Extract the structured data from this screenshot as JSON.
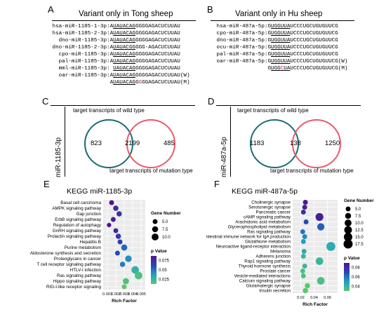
{
  "panels": {
    "A": {
      "letter": "A",
      "title": "Variant only in Tong sheep",
      "rows": [
        {
          "name": "hsa-miR-1185-1-3p:",
          "pre": "AUAUACAGG",
          "post": "GGGAGACUCUUAU",
          "ul": "UAUACAG"
        },
        {
          "name": "hsa-miR-1185-2-3p:",
          "pre": "AUAUACAGG",
          "post": "GGGAGACUCUUAU",
          "ul": "UAUACAG"
        },
        {
          "name": "dno-miR-1185-3p:",
          "pre": "AUAUACAGG",
          "post": "GGGAGACUCUUAU",
          "ul": "UAUACAG"
        },
        {
          "name": "dno-miR-1185-2-3p:",
          "pre": "AUAUACGGG",
          "post": "GG-AGACUCUUAU",
          "ul": "UAUACGG"
        },
        {
          "name": "cpo-miR-1185-3p:",
          "pre": "AUAUACAGG",
          "post": "GGGAGACUCUUAU",
          "ul": "UAUACAG"
        },
        {
          "name": "pal-miR-1185-3p:",
          "pre": "AUAUACAGG",
          "post": "GGGAGACUCUUAU",
          "ul": "UAUACAG"
        },
        {
          "name": "mml-miR-1185-3p:",
          "pre": " UAUACAGG",
          "post": "GGGAGACUCUUAU",
          "ul": "UAUACAG"
        },
        {
          "name": "oar-miR-1185-3p:",
          "pre": "AUAUACAGG",
          "post": "GGGAGACUCUUAU(W)",
          "ul": "UAUACAG"
        },
        {
          "name": "",
          "pre": "AUAUACAGG",
          "post": "GGAGACUCUUAU(M)",
          "ul": "UAUACAG",
          "red": "G"
        }
      ]
    },
    "B": {
      "letter": "B",
      "title": "Variant only in Hu sheep",
      "rows": [
        {
          "name": "hsa-miR-487a-5p:",
          "seq": "GUGGUUAUCCCUGCUGUGUUCG"
        },
        {
          "name": "cpo-miR-487a-5p:",
          "seq": "GUGGUUAUCCCUGCUGUGUUCG"
        },
        {
          "name": "dno-miR-487a-5p:",
          "seq": "GUGGUUAUCCCUGCUGUGUUCG"
        },
        {
          "name": "ocu-miR-487a-5p:",
          "seq": "GUGGUUAUCCCUGCUGUGUUCG"
        },
        {
          "name": "pal-miR-487a-5p:",
          "seq": "GUGGUUAUCCCUGCUGUGUUCG"
        },
        {
          "name": "oar-miR-487a-5p:",
          "seq": "GUGGUUAUCCCUGCUGUGUUCG(W)"
        },
        {
          "name": "",
          "seq": "GUGGCUAUCCCUGCUGUGUUCG(M)",
          "red": "C"
        }
      ]
    },
    "C": {
      "letter": "C",
      "side_label": "miR-1185-3p",
      "top": "target transcripts of wild type",
      "bottom": "target transcripts of mutation type",
      "left": "823",
      "mid": "2199",
      "right": "485"
    },
    "D": {
      "letter": "D",
      "side_label": "miR-487a-5p",
      "top": "target transcripts of wild type",
      "bottom": "target transcripts of mutation type",
      "left": "1183",
      "mid": "138",
      "right": "1250"
    },
    "E": {
      "letter": "E"
    },
    "F": {
      "letter": "F"
    }
  },
  "chart_data": [
    {
      "type": "scatter",
      "title": "KEGG miR-1185-3p",
      "xlabel": "Rich Factor",
      "xticks": [
        0.001,
        0.002,
        0.003,
        0.004,
        0.005
      ],
      "xlim": [
        0.0005,
        0.0055
      ],
      "size_legend_title": "Gene Number",
      "size_ticks": [
        5.0,
        7.5,
        10.0
      ],
      "color_legend_title": "p Value",
      "color_ticks": [
        0.075,
        0.05,
        0.025
      ],
      "points": [
        {
          "term": "Basal cell carcinoma",
          "x": 0.0015,
          "size": 5,
          "p": 0.09
        },
        {
          "term": "AMPK signaling pathway",
          "x": 0.002,
          "size": 6,
          "p": 0.08
        },
        {
          "term": "Gap junction",
          "x": 0.0024,
          "size": 6,
          "p": 0.075
        },
        {
          "term": "ErbB signaling pathway",
          "x": 0.0017,
          "size": 5,
          "p": 0.085
        },
        {
          "term": "Regulation of autophagy",
          "x": 0.0012,
          "size": 4,
          "p": 0.09
        },
        {
          "term": "GnRH signaling pathway",
          "x": 0.002,
          "size": 5,
          "p": 0.08
        },
        {
          "term": "Prolactin signaling pathway",
          "x": 0.0023,
          "size": 6,
          "p": 0.07
        },
        {
          "term": "Hepatitis B",
          "x": 0.0025,
          "size": 5,
          "p": 0.07
        },
        {
          "term": "Purine metabolism",
          "x": 0.003,
          "size": 8,
          "p": 0.055
        },
        {
          "term": "Aldosterone synthesis and secretion",
          "x": 0.0022,
          "size": 5,
          "p": 0.065
        },
        {
          "term": "Proteoglycans in cancer",
          "x": 0.0035,
          "size": 9,
          "p": 0.045
        },
        {
          "term": "T cell receptor signaling pathway",
          "x": 0.0028,
          "size": 6,
          "p": 0.05
        },
        {
          "term": "HTLV-I infection",
          "x": 0.0043,
          "size": 12,
          "p": 0.03
        },
        {
          "term": "Ras signaling pathway",
          "x": 0.0047,
          "size": 12,
          "p": 0.02
        },
        {
          "term": "Hippo signaling pathway",
          "x": 0.0032,
          "size": 8,
          "p": 0.02
        },
        {
          "term": "RIG-I-like receptor signaling",
          "x": 0.003,
          "size": 5,
          "p": 0.015
        }
      ]
    },
    {
      "type": "scatter",
      "title": "KEGG miR-487a-5p",
      "xlabel": "Rich Factor",
      "xticks": [
        0.02,
        0.04,
        0.06
      ],
      "xlim": [
        0.008,
        0.075
      ],
      "size_legend_title": "Gene Number",
      "size_ticks": [
        5.0,
        7.5,
        10.0,
        12.5,
        15.0,
        17.5
      ],
      "color_legend_title": "p Value",
      "color_ticks": [
        0.08,
        0.06,
        0.04
      ],
      "points": [
        {
          "term": "Cholinergic synapse",
          "x": 0.027,
          "size": 5,
          "p": 0.09
        },
        {
          "term": "Serotonergic synapse",
          "x": 0.026,
          "size": 5,
          "p": 0.085
        },
        {
          "term": "Pancreatic cancer",
          "x": 0.024,
          "size": 5,
          "p": 0.08
        },
        {
          "term": "cAMP signaling pathway",
          "x": 0.048,
          "size": 13,
          "p": 0.085
        },
        {
          "term": "Arachidonic acid metabolism",
          "x": 0.028,
          "size": 5,
          "p": 0.07
        },
        {
          "term": "Glycerophospholipid metabolism",
          "x": 0.05,
          "size": 11,
          "p": 0.065
        },
        {
          "term": "Ras signaling pathway",
          "x": 0.023,
          "size": 5,
          "p": 0.06
        },
        {
          "term": "ntestinal immune network for IgA production",
          "x": 0.026,
          "size": 5,
          "p": 0.055
        },
        {
          "term": "Glutathione metabolism",
          "x": 0.024,
          "size": 5,
          "p": 0.05
        },
        {
          "term": "Neuroactive ligand-receptor interaction",
          "x": 0.065,
          "size": 17,
          "p": 0.045
        },
        {
          "term": "Melanoma",
          "x": 0.025,
          "size": 5,
          "p": 0.045
        },
        {
          "term": "Adherens junction",
          "x": 0.024,
          "size": 5,
          "p": 0.04
        },
        {
          "term": "Rap1 signaling pathway",
          "x": 0.048,
          "size": 12,
          "p": 0.04
        },
        {
          "term": "Thyroid hormone synthesis",
          "x": 0.026,
          "size": 5,
          "p": 0.04
        },
        {
          "term": "Prostate cancer",
          "x": 0.023,
          "size": 5,
          "p": 0.035
        },
        {
          "term": "Vesicle-mediated interactions",
          "x": 0.024,
          "size": 5,
          "p": 0.035
        },
        {
          "term": "Calcium signaling pathway",
          "x": 0.05,
          "size": 12,
          "p": 0.035
        },
        {
          "term": "Glutamatergic synapse",
          "x": 0.03,
          "size": 6,
          "p": 0.03
        },
        {
          "term": "Insulin secretion",
          "x": 0.027,
          "size": 6,
          "p": 0.03
        }
      ]
    }
  ]
}
